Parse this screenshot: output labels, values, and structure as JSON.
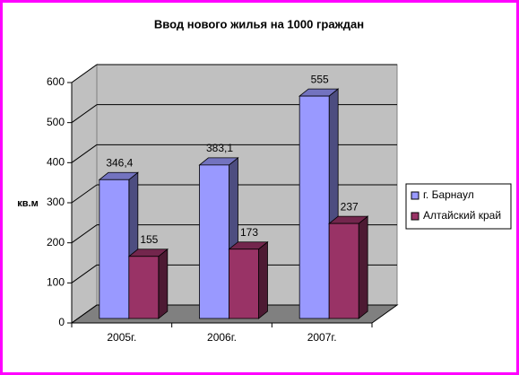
{
  "chart_data": {
    "type": "bar3d",
    "title": "Ввод нового жилья на 1000 граждан",
    "y_label": "кв.м",
    "categories": [
      "2005г.",
      "2006г.",
      "2007г."
    ],
    "series": [
      {
        "name": "г. Барнаул",
        "color": "#9999ff",
        "values": [
          346.4,
          383.1,
          555
        ],
        "value_labels": [
          "346,4",
          "383,1",
          "555"
        ]
      },
      {
        "name": "Алтайский край",
        "color": "#993366",
        "values": [
          155,
          173,
          237
        ]
      }
    ],
    "ylim": [
      0,
      600
    ],
    "yticks": [
      0,
      100,
      200,
      300,
      400,
      500,
      600
    ],
    "grid": true,
    "legend": "right"
  }
}
